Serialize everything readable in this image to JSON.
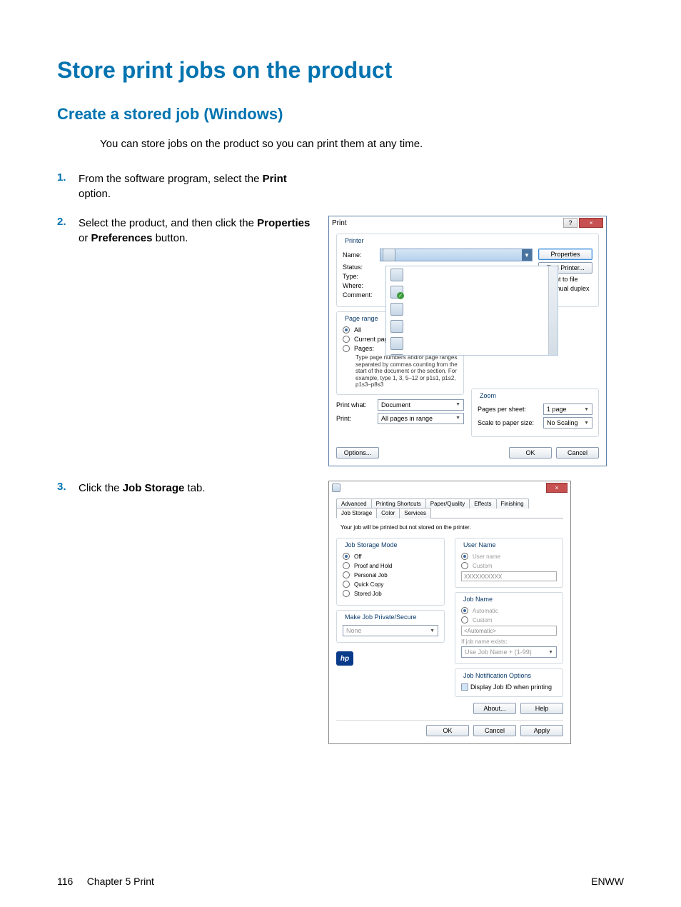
{
  "page": {
    "title": "Store print jobs on the product",
    "section_title": "Create a stored job (Windows)",
    "intro": "You can store jobs on the product so you can print them at any time."
  },
  "steps": {
    "s1": {
      "num": "1.",
      "text_a": "From the software program, select the ",
      "bold_a": "Print",
      "text_b": " option."
    },
    "s2": {
      "num": "2.",
      "text_a": "Select the product, and then click the ",
      "bold_a": "Properties",
      "text_b": " or ",
      "bold_b": "Preferences",
      "text_c": " button."
    },
    "s3": {
      "num": "3.",
      "text_a": "Click the ",
      "bold_a": "Job Storage",
      "text_b": " tab."
    }
  },
  "print_dialog": {
    "title": "Print",
    "printer_legend": "Printer",
    "name_label": "Name:",
    "status_label": "Status:",
    "type_label": "Type:",
    "where_label": "Where:",
    "comment_label": "Comment:",
    "properties_btn": "Properties",
    "find_printer_btn": "Find Printer...",
    "print_to_file": "Print to file",
    "manual_duplex": "Manual duplex",
    "page_range_legend": "Page range",
    "all": "All",
    "current": "Current page",
    "pages": "Pages:",
    "hint": "Type page numbers and/or page ranges separated by commas counting from the start of the document or the section. For example, type 1, 3, 5–12 or p1s1, p1s2, p1s3–p8s3",
    "print_what_label": "Print what:",
    "print_what_value": "Document",
    "print_label": "Print:",
    "print_value": "All pages in range",
    "zoom_legend": "Zoom",
    "pps_label": "Pages per sheet:",
    "pps_value": "1 page",
    "scale_label": "Scale to paper size:",
    "scale_value": "No Scaling",
    "options_btn": "Options...",
    "ok_btn": "OK",
    "cancel_btn": "Cancel"
  },
  "job_dialog": {
    "close": "×",
    "tabs": [
      "Advanced",
      "Printing Shortcuts",
      "Paper/Quality",
      "Effects",
      "Finishing",
      "Job Storage",
      "Color",
      "Services"
    ],
    "active_tab_index": 5,
    "status_line": "Your job will be printed but not stored on the printer.",
    "mode_legend": "Job Storage Mode",
    "modes": [
      "Off",
      "Proof and Hold",
      "Personal Job",
      "Quick Copy",
      "Stored Job"
    ],
    "mode_selected": 0,
    "private_legend": "Make Job Private/Secure",
    "private_value": "None",
    "user_legend": "User Name",
    "user_opt1": "User name",
    "user_opt2": "Custom",
    "user_field": "XXXXXXXXXX",
    "jobname_legend": "Job Name",
    "jobname_opt1": "Automatic",
    "jobname_opt2": "Custom",
    "jobname_field": "<Automatic>",
    "exists_label": "If job name exists:",
    "exists_value": "Use Job Name + (1-99)",
    "notify_legend": "Job Notification Options",
    "notify_check": "Display Job ID when printing",
    "about_btn": "About...",
    "help_btn": "Help",
    "ok_btn": "OK",
    "cancel_btn": "Cancel",
    "apply_btn": "Apply"
  },
  "footer": {
    "page_num": "116",
    "chapter": "Chapter 5   Print",
    "lang": "ENWW"
  }
}
